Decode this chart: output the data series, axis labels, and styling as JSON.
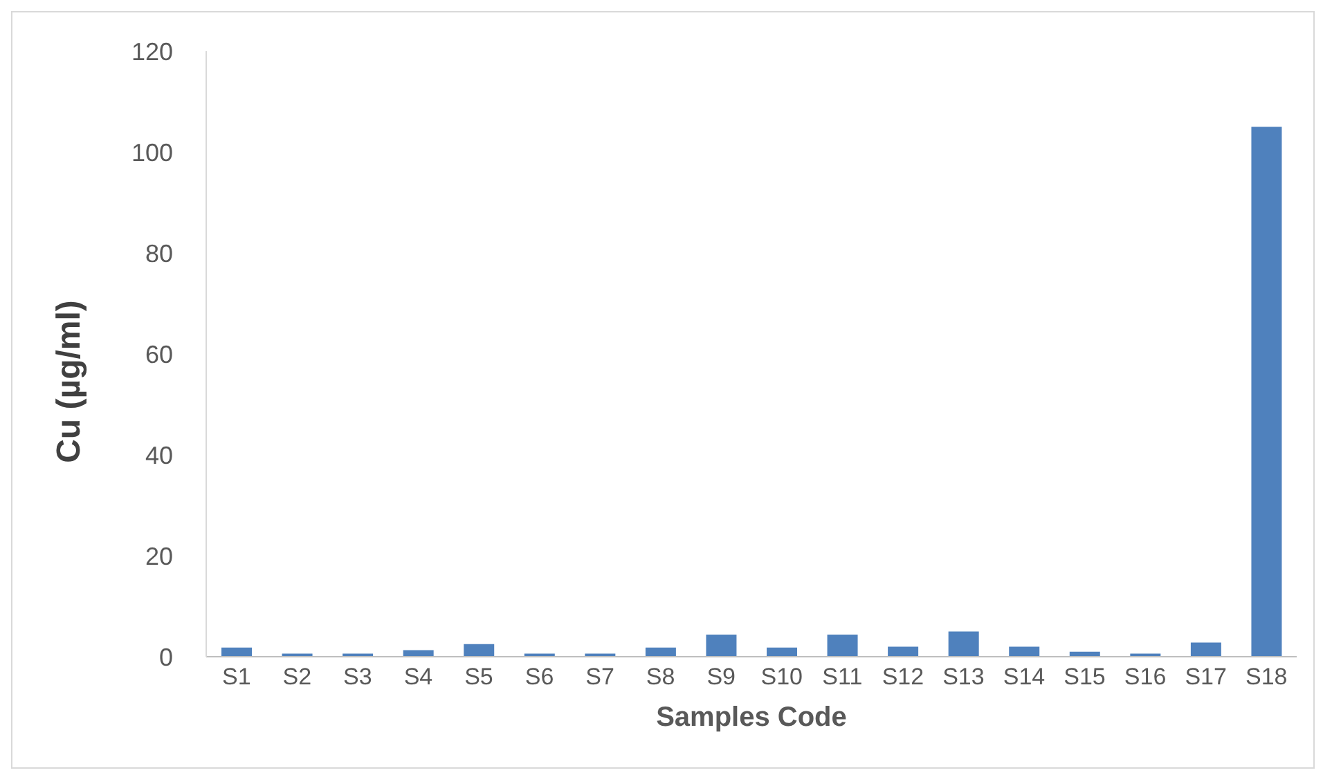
{
  "chart_data": {
    "type": "bar",
    "xlabel": "Samples Code",
    "ylabel": "Cu (µg/ml)",
    "categories": [
      "S1",
      "S2",
      "S3",
      "S4",
      "S5",
      "S6",
      "S7",
      "S8",
      "S9",
      "S10",
      "S11",
      "S12",
      "S13",
      "S14",
      "S15",
      "S16",
      "S17",
      "S18"
    ],
    "values": [
      1.8,
      0.6,
      0.6,
      1.3,
      2.5,
      0.6,
      0.6,
      1.8,
      4.4,
      1.8,
      4.4,
      2,
      5,
      2,
      1,
      0.6,
      2.8,
      105
    ],
    "color": "#4f81bd",
    "ylim": [
      0,
      120
    ],
    "yticks": [
      0,
      20,
      40,
      60,
      80,
      100,
      120
    ],
    "grid": false,
    "legend": false
  }
}
